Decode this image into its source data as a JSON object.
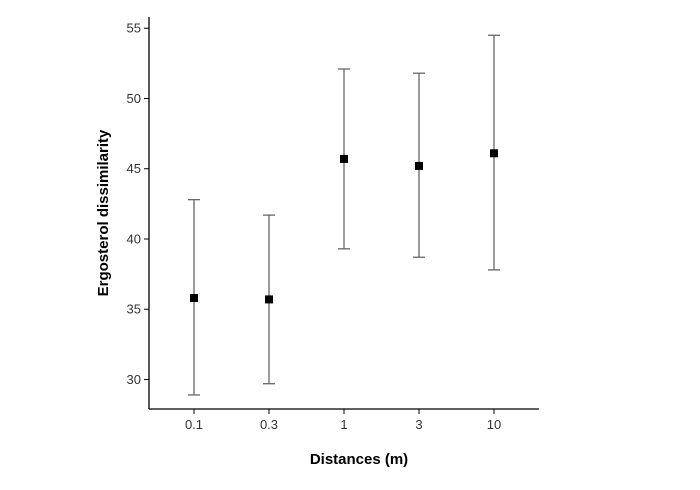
{
  "chart_data": {
    "type": "scatter",
    "title": "",
    "xlabel": "Distances (m)",
    "ylabel": "Ergosterol dissimilarity",
    "categories": [
      "0.1",
      "0.3",
      "1",
      "3",
      "10"
    ],
    "series": [
      {
        "values": [
          35.8,
          35.7,
          45.7,
          45.2,
          46.1
        ],
        "error_low": [
          28.9,
          29.7,
          39.3,
          38.7,
          37.8
        ],
        "error_high": [
          42.8,
          41.7,
          52.1,
          51.8,
          54.5
        ]
      }
    ],
    "ylim": [
      27.9,
      55.8
    ],
    "yticks": [
      30,
      35,
      40,
      45,
      50,
      55
    ],
    "grid": false,
    "marker": "square",
    "colors": {
      "points": "#000000",
      "error_bars": "#666666",
      "axes": "#000000"
    }
  }
}
